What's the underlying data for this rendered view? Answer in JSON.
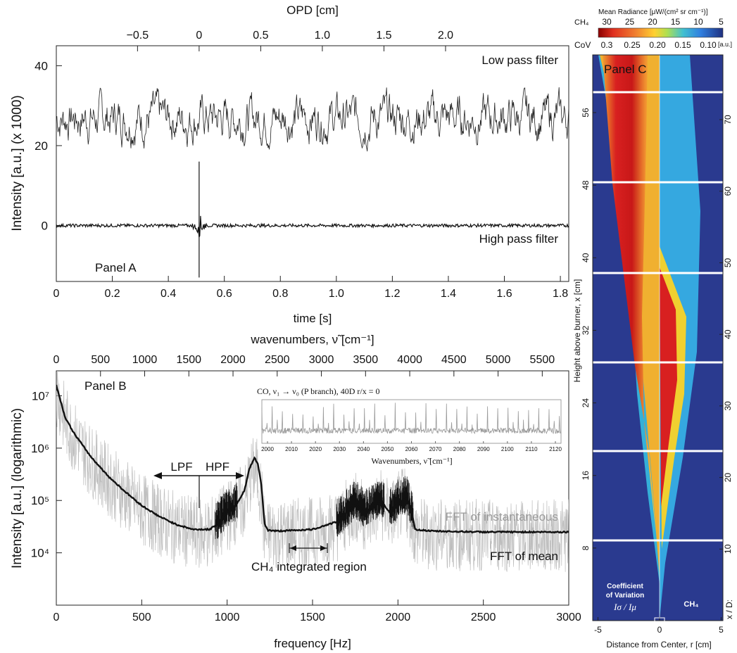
{
  "panel_a": {
    "label": "Panel A",
    "top_axis_label": "OPD [cm]",
    "top_ticks": [
      "−0.5",
      "0",
      "0.5",
      "1.0",
      "1.5",
      "2.0"
    ],
    "bottom_axis_label": "time [s]",
    "bottom_ticks": [
      "0",
      "0.2",
      "0.4",
      "0.6",
      "0.8",
      "1.0",
      "1.2",
      "1.4",
      "1.6",
      "1.8"
    ],
    "y_axis_label": "Intensity [a.u.] (x 1000)",
    "y_ticks": [
      "40",
      "20",
      "0"
    ],
    "annotations": {
      "low": "Low pass filter",
      "high": "High pass filter"
    }
  },
  "panel_b": {
    "label": "Panel B",
    "top_axis_label": "wavenumbers, ν̃ [cm⁻¹]",
    "top_ticks": [
      "0",
      "500",
      "1000",
      "1500",
      "2000",
      "2500",
      "3000",
      "3500",
      "4000",
      "4500",
      "5000",
      "5500"
    ],
    "bottom_axis_label": "frequency [Hz]",
    "bottom_ticks": [
      "0",
      "500",
      "1000",
      "1500",
      "2000",
      "2500",
      "3000"
    ],
    "y_axis_label": "Intensity [a.u.] (logarithmic)",
    "y_ticks": [
      "10⁷",
      "10⁶",
      "10⁵",
      "10⁴"
    ],
    "annotations": {
      "lpf": "LPF",
      "hpf": "HPF",
      "fft_inst": "FFT of instantaneous",
      "fft_mean": "FFT of mean",
      "ch4_region": "CH₄ integrated region"
    },
    "inset": {
      "title": "CO, ν₁ → ν₀ (P branch), 40D r/x = 0",
      "xlabel": "Wavenumbers, ν̃ [cm⁻¹]",
      "ticks": [
        "2000",
        "2010",
        "2020",
        "2030",
        "2040",
        "2050",
        "2060",
        "2070",
        "2080",
        "2090",
        "2100",
        "2110",
        "2120"
      ]
    }
  },
  "panel_c": {
    "label": "Panel C",
    "colorbar_title": "Mean Radiance [μW/(cm² sr cm⁻¹)]",
    "ch4_row_label": "CH₄",
    "ch4_ticks": [
      "30",
      "25",
      "20",
      "15",
      "10",
      "5"
    ],
    "cov_row_label": "CoV",
    "cov_ticks": [
      "0.3",
      "0.25",
      "0.20",
      "0.15",
      "0.10"
    ],
    "cov_unit": "[a.u.]",
    "left_axis_label": "Height above burner, x [cm]",
    "left_ticks": [
      "56",
      "48",
      "40",
      "32",
      "24",
      "16",
      "8"
    ],
    "right_axis_label": "x / D:",
    "right_ticks": [
      "70",
      "60",
      "50",
      "40",
      "30",
      "20",
      "10"
    ],
    "bottom_axis_label": "Distance from Center, r [cm]",
    "bottom_ticks": [
      "-5",
      "0",
      "5"
    ],
    "left_caption_1": "Coefficient",
    "left_caption_2": "of Variation",
    "left_caption_3": "Iσ / Iμ",
    "right_caption": "CH₄"
  },
  "colors": {
    "instantaneous": "#bdbdbd",
    "mean": "#111111",
    "jet_bg": "#2a3a8f"
  },
  "chart_data": [
    {
      "type": "line",
      "title": "Panel A",
      "xlabel": "time [s]",
      "ylabel": "Intensity [a.u.] (x 1000)",
      "xlim": [
        0,
        1.83
      ],
      "ylim": [
        -14,
        45
      ],
      "series": [
        {
          "name": "Low pass filter",
          "mean": 27,
          "range": [
            15,
            40
          ]
        },
        {
          "name": "High pass filter",
          "mean": 0,
          "spike_time": 0.51,
          "spike_range": [
            -13,
            16
          ]
        }
      ]
    },
    {
      "type": "line",
      "title": "Panel B",
      "xlabel": "frequency [Hz]",
      "ylabel": "Intensity [a.u.] (logarithmic)",
      "xlim": [
        0,
        3000
      ],
      "yscale": "log",
      "ylim": [
        1000,
        30000000
      ],
      "series": [
        {
          "name": "FFT of mean",
          "x": [
            0,
            50,
            100,
            200,
            300,
            400,
            500,
            600,
            700,
            800,
            900,
            950,
            1000,
            1050,
            1100,
            1130,
            1160,
            1180,
            1200,
            1220,
            1240,
            1300,
            1500,
            1650,
            1700,
            1750,
            1800,
            1850,
            1900,
            1950,
            2000,
            2050,
            2080,
            2100,
            2200,
            2500,
            3000
          ],
          "y": [
            16000000,
            4000000,
            2000000,
            700000,
            300000,
            150000,
            80000,
            50000,
            35000,
            28000,
            28000,
            38000,
            60000,
            80000,
            150000,
            400000,
            650000,
            500000,
            200000,
            35000,
            27000,
            26000,
            28000,
            40000,
            60000,
            90000,
            60000,
            70000,
            100000,
            60000,
            90000,
            110000,
            60000,
            28000,
            26000,
            25000,
            25000
          ]
        },
        {
          "name": "FFT of instantaneous",
          "baseline": 25000
        }
      ]
    }
  ]
}
